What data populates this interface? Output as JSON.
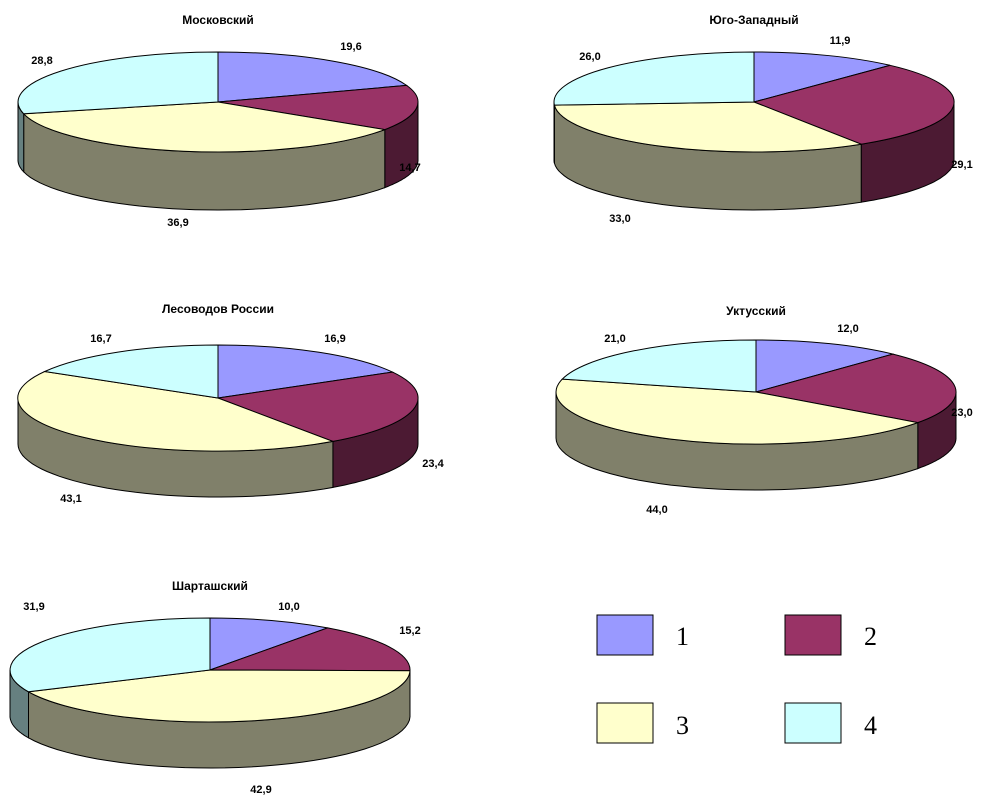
{
  "colors": {
    "1": {
      "top": "#9999ff",
      "side": "#4c4c80"
    },
    "2": {
      "top": "#993366",
      "side": "#4c1a33"
    },
    "3": {
      "top": "#ffffcc",
      "side": "#80806a"
    },
    "4": {
      "top": "#ccffff",
      "side": "#668080"
    }
  },
  "legend": [
    {
      "key": "1",
      "label": "1"
    },
    {
      "key": "2",
      "label": "2"
    },
    {
      "key": "3",
      "label": "3"
    },
    {
      "key": "4",
      "label": "4"
    }
  ],
  "chart_data": [
    {
      "type": "pie",
      "title": "Московский",
      "categories": [
        "1",
        "2",
        "3",
        "4"
      ],
      "values": [
        19.6,
        14.7,
        36.9,
        28.8
      ],
      "value_labels": [
        "19,6",
        "14,7",
        "36,9",
        "28,8"
      ]
    },
    {
      "type": "pie",
      "title": "Юго-Западный",
      "categories": [
        "1",
        "2",
        "3",
        "4"
      ],
      "values": [
        11.9,
        29.1,
        33.0,
        26.0
      ],
      "value_labels": [
        "11,9",
        "29,1",
        "33,0",
        "26,0"
      ]
    },
    {
      "type": "pie",
      "title": "Лесоводов России",
      "categories": [
        "1",
        "2",
        "3",
        "4"
      ],
      "values": [
        16.9,
        23.4,
        43.1,
        16.7
      ],
      "value_labels": [
        "16,9",
        "23,4",
        "43,1",
        "16,7"
      ]
    },
    {
      "type": "pie",
      "title": "Уктусский",
      "categories": [
        "1",
        "2",
        "3",
        "4"
      ],
      "values": [
        12.0,
        23.0,
        44.0,
        21.0
      ],
      "value_labels": [
        "12,0",
        "23,0",
        "44,0",
        "21,0"
      ]
    },
    {
      "type": "pie",
      "title": "Шарташский",
      "categories": [
        "1",
        "2",
        "3",
        "4"
      ],
      "values": [
        10.0,
        15.2,
        42.9,
        31.9
      ],
      "value_labels": [
        "10,0",
        "15,2",
        "42,9",
        "31,9"
      ]
    }
  ]
}
